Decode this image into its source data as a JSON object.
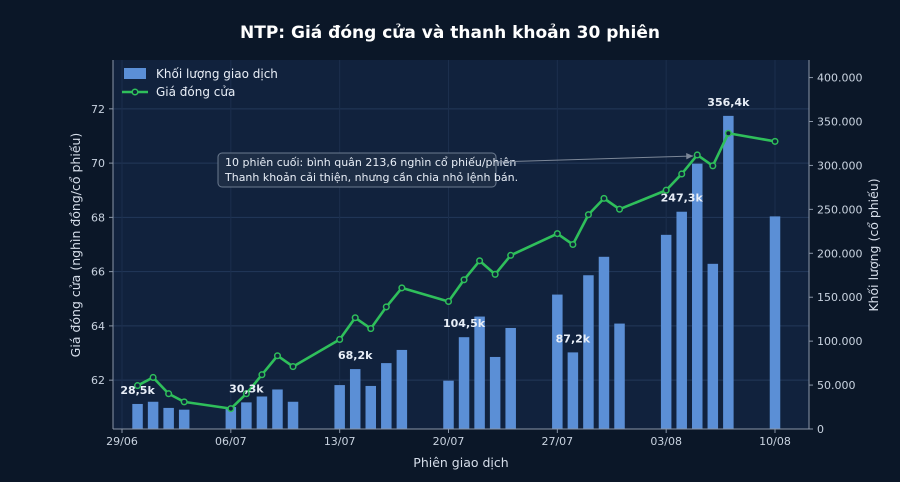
{
  "chart_data": {
    "type": "bar+line",
    "title": "NTP: Giá đóng cửa và thanh khoản 30 phiên",
    "xlabel": "Phiên giao dịch",
    "ylabel_left": "Giá đóng cửa (nghìn đồng/cổ phiếu)",
    "ylabel_right": "Khối lượng (cổ phiếu)",
    "ylim_left": [
      60.2,
      73.8
    ],
    "ylim_right": [
      0,
      420000
    ],
    "y_ticks_left": [
      "62",
      "64",
      "66",
      "68",
      "70",
      "72"
    ],
    "y_ticks_right": [
      "0",
      "50.000",
      "100.000",
      "150.000",
      "200.000",
      "250.000",
      "300.000",
      "350.000",
      "400.000"
    ],
    "x_tick_labels": [
      "29/06",
      "06/07",
      "13/07",
      "20/07",
      "27/07",
      "03/08",
      "10/08"
    ],
    "legend_position": "top-left",
    "grid": true,
    "series": [
      {
        "name": "Khối lượng giao dịch",
        "kind": "bar",
        "color": "#5b8fd6",
        "points": [
          {
            "date": "30/06",
            "value": 28500
          },
          {
            "date": "01/07",
            "value": 31000
          },
          {
            "date": "02/07",
            "value": 24000
          },
          {
            "date": "03/07",
            "value": 22000
          },
          {
            "date": "06/07",
            "value": 25000
          },
          {
            "date": "07/07",
            "value": 30300
          },
          {
            "date": "08/07",
            "value": 37000
          },
          {
            "date": "09/07",
            "value": 45000
          },
          {
            "date": "10/07",
            "value": 31000
          },
          {
            "date": "13/07",
            "value": 50000
          },
          {
            "date": "14/07",
            "value": 68200
          },
          {
            "date": "15/07",
            "value": 49000
          },
          {
            "date": "16/07",
            "value": 75000
          },
          {
            "date": "17/07",
            "value": 90000
          },
          {
            "date": "20/07",
            "value": 55000
          },
          {
            "date": "21/07",
            "value": 104500
          },
          {
            "date": "22/07",
            "value": 128000
          },
          {
            "date": "23/07",
            "value": 82000
          },
          {
            "date": "24/07",
            "value": 115000
          },
          {
            "date": "27/07",
            "value": 153000
          },
          {
            "date": "28/07",
            "value": 87200
          },
          {
            "date": "29/07",
            "value": 175000
          },
          {
            "date": "30/07",
            "value": 196000
          },
          {
            "date": "31/07",
            "value": 120000
          },
          {
            "date": "03/08",
            "value": 221000
          },
          {
            "date": "04/08",
            "value": 247300
          },
          {
            "date": "05/08",
            "value": 302000
          },
          {
            "date": "06/08",
            "value": 188000
          },
          {
            "date": "07/08",
            "value": 356400
          },
          {
            "date": "10/08",
            "value": 242000
          }
        ]
      },
      {
        "name": "Giá đóng cửa",
        "kind": "line",
        "color": "#2fbf5b",
        "points": [
          {
            "date": "30/06",
            "value": 61.8
          },
          {
            "date": "01/07",
            "value": 62.1
          },
          {
            "date": "02/07",
            "value": 61.5
          },
          {
            "date": "03/07",
            "value": 61.2
          },
          {
            "date": "06/07",
            "value": 60.95
          },
          {
            "date": "07/07",
            "value": 61.5
          },
          {
            "date": "08/07",
            "value": 62.2
          },
          {
            "date": "09/07",
            "value": 62.9
          },
          {
            "date": "10/07",
            "value": 62.5
          },
          {
            "date": "13/07",
            "value": 63.5
          },
          {
            "date": "14/07",
            "value": 64.3
          },
          {
            "date": "15/07",
            "value": 63.9
          },
          {
            "date": "16/07",
            "value": 64.7
          },
          {
            "date": "17/07",
            "value": 65.4
          },
          {
            "date": "20/07",
            "value": 64.9
          },
          {
            "date": "21/07",
            "value": 65.7
          },
          {
            "date": "22/07",
            "value": 66.4
          },
          {
            "date": "23/07",
            "value": 65.9
          },
          {
            "date": "24/07",
            "value": 66.6
          },
          {
            "date": "27/07",
            "value": 67.4
          },
          {
            "date": "28/07",
            "value": 67.0
          },
          {
            "date": "29/07",
            "value": 68.1
          },
          {
            "date": "30/07",
            "value": 68.7
          },
          {
            "date": "31/07",
            "value": 68.3
          },
          {
            "date": "03/08",
            "value": 69.0
          },
          {
            "date": "04/08",
            "value": 69.6
          },
          {
            "date": "05/08",
            "value": 70.3
          },
          {
            "date": "06/08",
            "value": 69.9
          },
          {
            "date": "07/08",
            "value": 71.1
          },
          {
            "date": "10/08",
            "value": 70.8
          }
        ]
      }
    ],
    "bar_value_labels": [
      {
        "date": "30/06",
        "text": "28,5k"
      },
      {
        "date": "07/07",
        "text": "30,3k"
      },
      {
        "date": "14/07",
        "text": "68,2k"
      },
      {
        "date": "21/07",
        "text": "104,5k"
      },
      {
        "date": "28/07",
        "text": "87,2k"
      },
      {
        "date": "04/08",
        "text": "247,3k"
      },
      {
        "date": "07/08",
        "text": "356,4k"
      }
    ],
    "annotation": {
      "lines": [
        "10 phiên cuối: bình quân 213,6 nghìn cổ phiếu/phiên",
        "Thanh khoản cải thiện, nhưng cần chia nhỏ lệnh bán."
      ],
      "target_date": "05/08"
    }
  }
}
